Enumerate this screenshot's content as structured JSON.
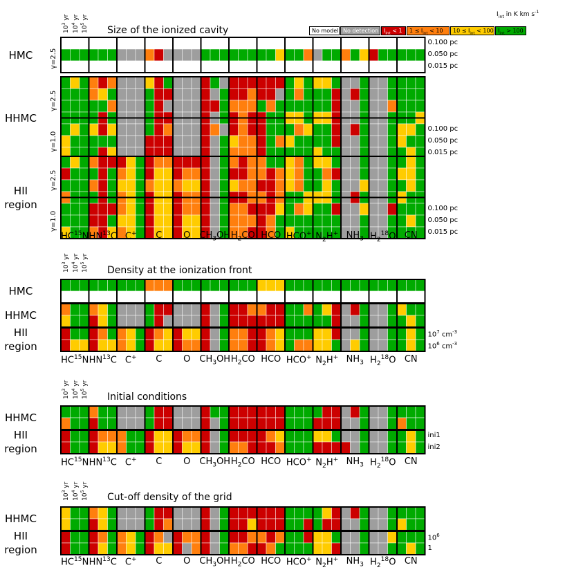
{
  "legend": {
    "title": "I_int in K km s^-1",
    "colors": {
      "W": "#ffffff",
      "G": "#9e9e9e",
      "R": "#cc0000",
      "O": "#ff7f0e",
      "Y": "#ffcc00",
      "N": "#00aa00"
    },
    "items": [
      {
        "code": "W",
        "label": "No model"
      },
      {
        "code": "G",
        "label": "No detection"
      },
      {
        "code": "R",
        "label": "I_int < 1"
      },
      {
        "code": "O",
        "label": "1 ≤ I_int < 10"
      },
      {
        "code": "Y",
        "label": "10 ≤ I_int < 100"
      },
      {
        "code": "N",
        "label": "I_int > 100"
      }
    ]
  },
  "ages": [
    "10^3 yr",
    "10^4 yr",
    "10^5 yr"
  ],
  "molecules": [
    "HC15N",
    "HN13C",
    "C+",
    "C",
    "O",
    "CH3OH",
    "H2CO",
    "HCO",
    "HCO+",
    "N2H+",
    "NH3",
    "H2 18O",
    "CN"
  ],
  "chart_data": [
    {
      "type": "heatmap",
      "title": "Size of the ionized cavity",
      "rows": [
        {
          "label": "HMC",
          "sublabels": [
            "γ=2.5"
          ],
          "rightlabels": [
            "0.100 pc",
            "0.050 pc",
            "0.015 pc"
          ],
          "cells": [
            "WWWWWWWWWWWWWWWWWWWWWWWWWWWWWWWWWWWWWWW",
            "NNNNNNGGGORGGGGNNNNNNNNYNNOGNNONYRNNNNN",
            "WWWWWWWWWWWWWWWWWWWWWWWWWWWWWWWWWWWWWWW"
          ]
        },
        {
          "label": "HHMC",
          "sublabels": [
            "γ=2.5",
            "γ=1.0"
          ],
          "rightlabels": [
            "0.100 pc",
            "0.050 pc",
            "0.015 pc"
          ],
          "cells": [
            "NYNOROGGGYRNGGGRNGRRRRRRNYNYYNGGNGGNNNN",
            "NNNOYNGGGNRRGGGRGNRRORRGNONNNRGRNGGNNNN",
            "NNNNNOGGGNRGGGGRRNOOONONNNNNNRGGNGGONNN",
            "NNNNRNGGGNRRGGGRGNRORRNNYYNYYRGGNGGNNNY",
            "NYNYRYGGGNROGGGROGRORRNNNOYNNRGRNGGNYYN",
            "YNNNNNGGGRRRGGGRGNYOORNOYNNNNRGGNGGNYNN",
            "YNNNRYGGGRRRGGGRGNOOORNNNNNYNNGGNGGNNYN"
          ]
        },
        {
          "label": "HII region",
          "sublabels": [
            "γ=2.5",
            "γ=1.0"
          ],
          "rightlabels": [
            "0.100 pc",
            "0.050 pc",
            "0.015 pc"
          ],
          "cells": [
            "NYNORRRYNROORRRRGNOROONNYONYYNGGNGGNNYN",
            "RNNNRNOYNRYYROORGNRROOROYONNORGGNGGNYYN",
            "NNNORNYYNOYYOYYRGNYOORROYONNYNGGYGGNNYN",
            "ONNNRNOYNRYYROORGNRROORONNYYYNGRNGGNYNN",
            "NNNRRROYNRYYROORGNOORRRYNOYNNRGGYGGRNNN",
            "NNNRRNYYNRYYRYYRGNOOORONNNNNNNGGNGGNNYN",
            "YNNORYOYNRYYRYYRGNOORRONYNNNNNGGNGGNNNN"
          ]
        }
      ]
    },
    {
      "type": "heatmap",
      "title": "Density at the ionization front",
      "rows": [
        {
          "label": "HMC",
          "sublabels": [],
          "rightlabels": [],
          "cells": [
            "NNNNNNNNNOOONNNNNNNNNYYYNNNNNNNNNNNNNNN",
            "WWWWWWWWWWWWWWWWWWWWWWWWWWWWWWWWWWWWWWW"
          ]
        },
        {
          "label": "HHMC",
          "sublabels": [],
          "rightlabels": [],
          "cells": [
            "ONNOYNGGGNRRGGGRGNRROORRNNONYRGRNGGNYNN",
            "YNNRYNGGGNRGGGGRGNRRRRRRNNNNNRGGNGGNNYN"
          ]
        },
        {
          "label": "HII region",
          "sublabels": [],
          "rightlabels": [
            "10^7 cm^-3",
            "10^6 cm^-3"
          ],
          "cells": [
            "RNNRONOYNROYRYYRGNOORROYNNNYYRGGNGGNNYN",
            "RYYRYYOYNRYYROORGNOORROYNOOYYNGYNGGNNYN"
          ]
        }
      ]
    },
    {
      "type": "heatmap",
      "title": "Initial conditions",
      "rows": [
        {
          "label": "HHMC",
          "sublabels": [],
          "rightlabels": [],
          "cells": [
            "NNNONNGGGNRRGGGRNNRRRRRRNNNNRRGRNGGNNNN",
            "ONNRNNGGGNRRGGGRGNRRRRRRNNNRRRGGNGGNONN"
          ]
        },
        {
          "label": "HII region",
          "sublabels": [],
          "rightlabels": [
            "ini1",
            "ini2"
          ],
          "cells": [
            "RNNROOONNRYYROORGNRRRROYNNNYYNGGNGGNNYN",
            "RNNRYYONNRYYRYYRGNOORRRONNNRRRRGNGGNNYN"
          ]
        }
      ]
    },
    {
      "type": "heatmap",
      "title": "Cut-off density of the grid",
      "rows": [
        {
          "label": "HHMC",
          "sublabels": [],
          "rightlabels": [],
          "cells": [
            "YNNOYNGGGNRRGGGRGNRRRRRRNNNNYRGRNGGNNNN",
            "YNNRYNGGGNROGGGRGNRRYRRRNNRNRRGGNGGNYNN"
          ]
        },
        {
          "label": "HII region",
          "sublabels": [],
          "rightlabels": [
            "10^6",
            "1"
          ],
          "cells": [
            "RNNRONOYNROGROORGNRROORONNRYYNGGNGGYNNN",
            "RNNRYNOYNRYYRGORGNOORRONNNNYYRGGNGGNNYN"
          ]
        }
      ]
    }
  ]
}
